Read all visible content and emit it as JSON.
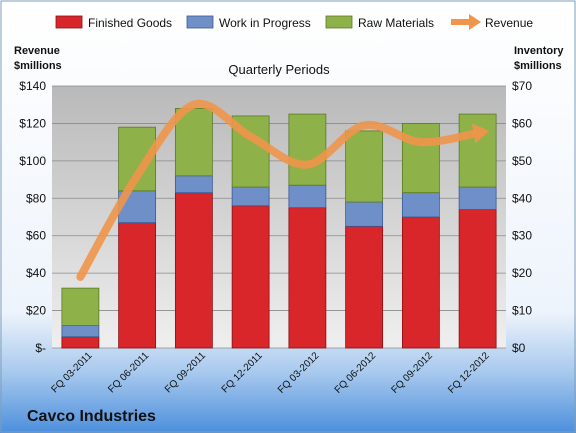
{
  "company_name": "Cavco Industries",
  "chart_data": {
    "type": "bar",
    "subtitle": "Quarterly Periods",
    "left_axis_label": [
      "Revenue",
      "$millions"
    ],
    "right_axis_label": [
      "Inventory",
      "$millions"
    ],
    "categories": [
      "FQ 03-2011",
      "FQ 06-2011",
      "FQ 09-2011",
      "FQ 12-2011",
      "FQ 03-2012",
      "FQ 06-2012",
      "FQ 09-2012",
      "FQ 12-2012"
    ],
    "stacked": true,
    "series": [
      {
        "name": "Finished Goods",
        "axis": "right",
        "color": "#d8262b",
        "values": [
          3,
          33.5,
          41.5,
          38,
          37.5,
          32.5,
          35,
          37
        ]
      },
      {
        "name": "Work in Progress",
        "axis": "right",
        "color": "#6f8fc9",
        "values": [
          3,
          8.5,
          4.5,
          5,
          6,
          6.5,
          6.5,
          6
        ]
      },
      {
        "name": "Raw Materials",
        "axis": "right",
        "color": "#8fb14a",
        "values": [
          10,
          17,
          18,
          19,
          19,
          19,
          18.5,
          19.5
        ]
      },
      {
        "name": "Revenue",
        "axis": "left",
        "type": "line",
        "color": "#f0954a",
        "values": [
          38,
          92,
          130,
          113,
          98,
          119,
          110,
          115
        ]
      }
    ],
    "left_axis": {
      "min": 0,
      "max": 140,
      "ticks": [
        "$-",
        "$20",
        "$40",
        "$60",
        "$80",
        "$100",
        "$120",
        "$140"
      ]
    },
    "right_axis": {
      "min": 0,
      "max": 70,
      "ticks": [
        "$0",
        "$10",
        "$20",
        "$30",
        "$40",
        "$50",
        "$60",
        "$70"
      ]
    },
    "legend_position": "top",
    "grid": true
  }
}
